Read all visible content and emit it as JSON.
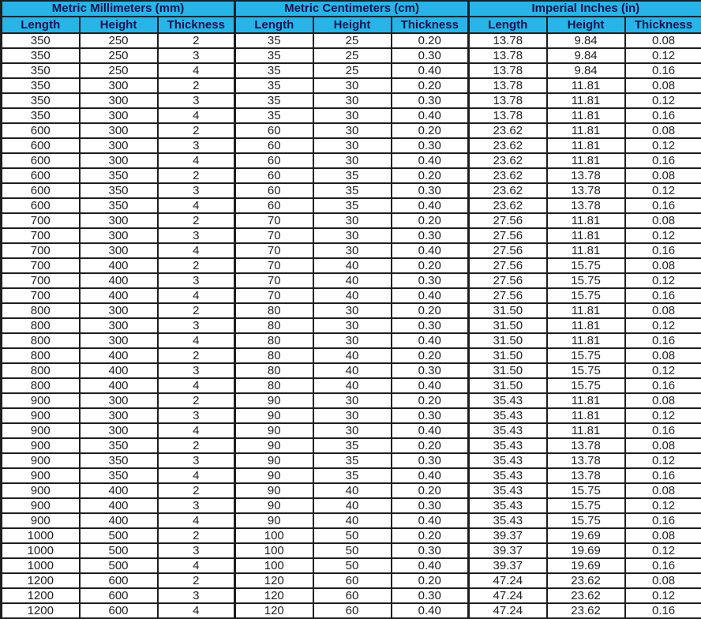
{
  "colors": {
    "header_bg": "#29b4e8",
    "header_text": "#141450",
    "body_text": "#1d1d1d",
    "border": "#1e1e1e",
    "row_bg": "#ffffff"
  },
  "table": {
    "groups": [
      {
        "label": "Metric Millimeters (mm)",
        "columns": [
          "Length",
          "Height",
          "Thickness"
        ]
      },
      {
        "label": "Metric Centimeters (cm)",
        "columns": [
          "Length",
          "Height",
          "Thickness"
        ]
      },
      {
        "label": "Imperial Inches (in)",
        "columns": [
          "Length",
          "Height",
          "Thickness"
        ]
      }
    ],
    "rows": [
      [
        "350",
        "250",
        "2",
        "35",
        "25",
        "0.20",
        "13.78",
        "9.84",
        "0.08"
      ],
      [
        "350",
        "250",
        "3",
        "35",
        "25",
        "0.30",
        "13.78",
        "9.84",
        "0.12"
      ],
      [
        "350",
        "250",
        "4",
        "35",
        "25",
        "0.40",
        "13.78",
        "9.84",
        "0.16"
      ],
      [
        "350",
        "300",
        "2",
        "35",
        "30",
        "0.20",
        "13.78",
        "11.81",
        "0.08"
      ],
      [
        "350",
        "300",
        "3",
        "35",
        "30",
        "0.30",
        "13.78",
        "11.81",
        "0.12"
      ],
      [
        "350",
        "300",
        "4",
        "35",
        "30",
        "0.40",
        "13.78",
        "11.81",
        "0.16"
      ],
      [
        "600",
        "300",
        "2",
        "60",
        "30",
        "0.20",
        "23.62",
        "11.81",
        "0.08"
      ],
      [
        "600",
        "300",
        "3",
        "60",
        "30",
        "0.30",
        "23.62",
        "11.81",
        "0.12"
      ],
      [
        "600",
        "300",
        "4",
        "60",
        "30",
        "0.40",
        "23.62",
        "11.81",
        "0.16"
      ],
      [
        "600",
        "350",
        "2",
        "60",
        "35",
        "0.20",
        "23.62",
        "13.78",
        "0.08"
      ],
      [
        "600",
        "350",
        "3",
        "60",
        "35",
        "0.30",
        "23.62",
        "13.78",
        "0.12"
      ],
      [
        "600",
        "350",
        "4",
        "60",
        "35",
        "0.40",
        "23.62",
        "13.78",
        "0.16"
      ],
      [
        "700",
        "300",
        "2",
        "70",
        "30",
        "0.20",
        "27.56",
        "11.81",
        "0.08"
      ],
      [
        "700",
        "300",
        "3",
        "70",
        "30",
        "0.30",
        "27.56",
        "11.81",
        "0.12"
      ],
      [
        "700",
        "300",
        "4",
        "70",
        "30",
        "0.40",
        "27.56",
        "11.81",
        "0.16"
      ],
      [
        "700",
        "400",
        "2",
        "70",
        "40",
        "0.20",
        "27.56",
        "15.75",
        "0.08"
      ],
      [
        "700",
        "400",
        "3",
        "70",
        "40",
        "0.30",
        "27.56",
        "15.75",
        "0.12"
      ],
      [
        "700",
        "400",
        "4",
        "70",
        "40",
        "0.40",
        "27.56",
        "15.75",
        "0.16"
      ],
      [
        "800",
        "300",
        "2",
        "80",
        "30",
        "0.20",
        "31.50",
        "11.81",
        "0.08"
      ],
      [
        "800",
        "300",
        "3",
        "80",
        "30",
        "0.30",
        "31.50",
        "11.81",
        "0.12"
      ],
      [
        "800",
        "300",
        "4",
        "80",
        "30",
        "0.40",
        "31.50",
        "11.81",
        "0.16"
      ],
      [
        "800",
        "400",
        "2",
        "80",
        "40",
        "0.20",
        "31.50",
        "15.75",
        "0.08"
      ],
      [
        "800",
        "400",
        "3",
        "80",
        "40",
        "0.30",
        "31.50",
        "15.75",
        "0.12"
      ],
      [
        "800",
        "400",
        "4",
        "80",
        "40",
        "0.40",
        "31.50",
        "15.75",
        "0.16"
      ],
      [
        "900",
        "300",
        "2",
        "90",
        "30",
        "0.20",
        "35.43",
        "11.81",
        "0.08"
      ],
      [
        "900",
        "300",
        "3",
        "90",
        "30",
        "0.30",
        "35.43",
        "11.81",
        "0.12"
      ],
      [
        "900",
        "300",
        "4",
        "90",
        "30",
        "0.40",
        "35.43",
        "11.81",
        "0.16"
      ],
      [
        "900",
        "350",
        "2",
        "90",
        "35",
        "0.20",
        "35.43",
        "13.78",
        "0.08"
      ],
      [
        "900",
        "350",
        "3",
        "90",
        "35",
        "0.30",
        "35.43",
        "13.78",
        "0.12"
      ],
      [
        "900",
        "350",
        "4",
        "90",
        "35",
        "0.40",
        "35.43",
        "13.78",
        "0.16"
      ],
      [
        "900",
        "400",
        "2",
        "90",
        "40",
        "0.20",
        "35.43",
        "15.75",
        "0.08"
      ],
      [
        "900",
        "400",
        "3",
        "90",
        "40",
        "0.30",
        "35.43",
        "15.75",
        "0.12"
      ],
      [
        "900",
        "400",
        "4",
        "90",
        "40",
        "0.40",
        "35.43",
        "15.75",
        "0.16"
      ],
      [
        "1000",
        "500",
        "2",
        "100",
        "50",
        "0.20",
        "39.37",
        "19.69",
        "0.08"
      ],
      [
        "1000",
        "500",
        "3",
        "100",
        "50",
        "0.30",
        "39.37",
        "19.69",
        "0.12"
      ],
      [
        "1000",
        "500",
        "4",
        "100",
        "50",
        "0.40",
        "39.37",
        "19.69",
        "0.16"
      ],
      [
        "1200",
        "600",
        "2",
        "120",
        "60",
        "0.20",
        "47.24",
        "23.62",
        "0.08"
      ],
      [
        "1200",
        "600",
        "3",
        "120",
        "60",
        "0.30",
        "47.24",
        "23.62",
        "0.12"
      ],
      [
        "1200",
        "600",
        "4",
        "120",
        "60",
        "0.40",
        "47.24",
        "23.62",
        "0.16"
      ]
    ]
  }
}
